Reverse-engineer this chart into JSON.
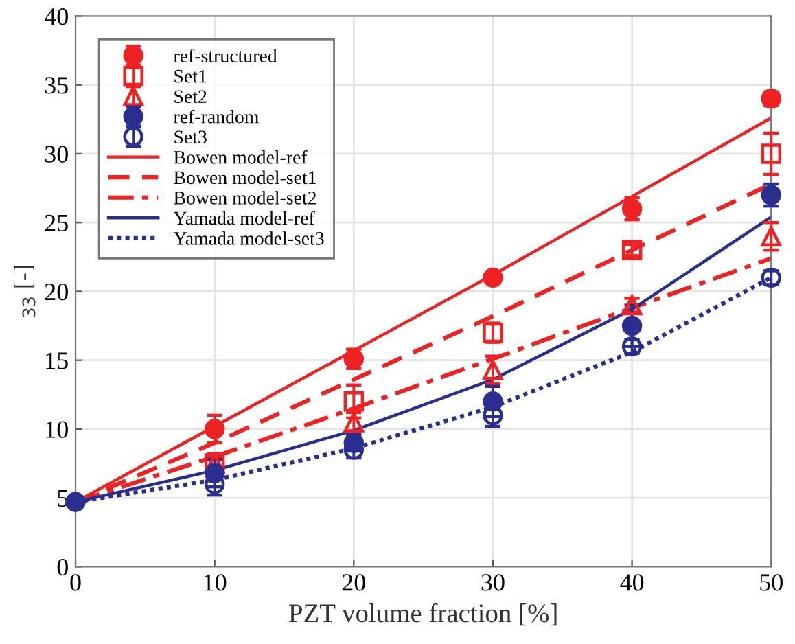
{
  "chart_data": {
    "type": "line",
    "xlabel": "PZT volume fraction [%]",
    "ylabel": "$_{33}$ [-]",
    "x": [
      0,
      10,
      20,
      30,
      40,
      50
    ],
    "xlim": [
      0,
      50
    ],
    "xticks": [
      0,
      10,
      20,
      30,
      40,
      50
    ],
    "ylim": [
      0,
      40
    ],
    "yticks": [
      0,
      5,
      10,
      15,
      20,
      25,
      30,
      35,
      40
    ],
    "grid": true,
    "legend": "top left",
    "series": [
      {
        "name": "ref-structured",
        "type": "scatter",
        "color": "#ee2222",
        "marker": "circle",
        "values": [
          null,
          10,
          15.1,
          21,
          26,
          34
        ],
        "errors": [
          null,
          1,
          0.7,
          0.3,
          0.8,
          0.5
        ]
      },
      {
        "name": "Set1",
        "type": "scatter",
        "color": "#ee2222",
        "marker": "square",
        "values": [
          null,
          7.5,
          12,
          17,
          23,
          30
        ],
        "errors": [
          null,
          0.7,
          1.2,
          0.7,
          0.4,
          1.5
        ]
      },
      {
        "name": "Set2",
        "type": "scatter",
        "color": "#ee2222",
        "marker": "triangle",
        "values": [
          null,
          7.5,
          10.5,
          14.3,
          19,
          24
        ],
        "errors": [
          null,
          0.5,
          0.7,
          1,
          0.5,
          1
        ]
      },
      {
        "name": "ref-random",
        "type": "scatter",
        "color": "#2a2f8f",
        "marker": "circle",
        "values": [
          4.7,
          6.8,
          9,
          12,
          17.5,
          27
        ],
        "errors": [
          null,
          1,
          0.6,
          1.1,
          1.5,
          0.8
        ]
      },
      {
        "name": "Set3",
        "type": "scatter",
        "color": "#2a2f8f",
        "marker": "circle",
        "values": [
          null,
          6,
          8.5,
          11,
          16,
          21
        ],
        "errors": [
          null,
          0.8,
          0.6,
          0.8,
          0.5,
          0.5
        ]
      },
      {
        "name": "Bowen model-ref",
        "color": "#ee2222",
        "line_style": "solid",
        "values": [
          4.7,
          10.2,
          15.7,
          21.2,
          26.9,
          32.6
        ]
      },
      {
        "name": "Bowen model-set1",
        "color": "#ee2222",
        "line_style": "dashed",
        "values": [
          4.7,
          9,
          13.6,
          18.2,
          23,
          27.8
        ]
      },
      {
        "name": "Bowen model-set2",
        "color": "#ee2222",
        "line_style": "dashdot",
        "values": [
          4.7,
          8,
          11.5,
          15.1,
          18.8,
          22.4
        ]
      },
      {
        "name": "Yamada model-ref",
        "color": "#2a2f8f",
        "line_style": "solid",
        "values": [
          4.7,
          7,
          9.9,
          13.6,
          18.7,
          25.4
        ]
      },
      {
        "name": "Yamada model-set3",
        "color": "#2a2f8f",
        "line_style": "dotted",
        "values": [
          4.7,
          6.3,
          8.6,
          11.6,
          15.6,
          21
        ]
      }
    ]
  }
}
